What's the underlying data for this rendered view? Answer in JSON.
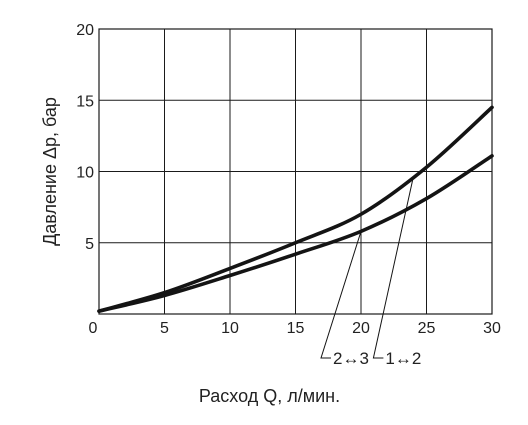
{
  "chart_data": {
    "type": "line",
    "xlabel": "Расход Q, л/мин.",
    "ylabel": "Давление Δp, бар",
    "xlim": [
      0,
      30
    ],
    "ylim": [
      0,
      20
    ],
    "x_ticks": [
      "0",
      "5",
      "10",
      "15",
      "20",
      "25",
      "30"
    ],
    "y_ticks": [
      "5",
      "10",
      "15",
      "20"
    ],
    "grid": true,
    "series": [
      {
        "name": "1↔2",
        "x": [
          0,
          5,
          10,
          15,
          20,
          25,
          30
        ],
        "y": [
          0.2,
          1.5,
          3.2,
          5.0,
          7.0,
          10.3,
          14.5
        ],
        "label_at_x": 24,
        "label_position": "bottom-right"
      },
      {
        "name": "2↔3",
        "x": [
          0,
          5,
          10,
          15,
          20,
          25,
          30
        ],
        "y": [
          0.2,
          1.3,
          2.7,
          4.2,
          5.8,
          8.1,
          11.1
        ],
        "label_at_x": 20,
        "label_position": "bottom-right"
      }
    ]
  }
}
